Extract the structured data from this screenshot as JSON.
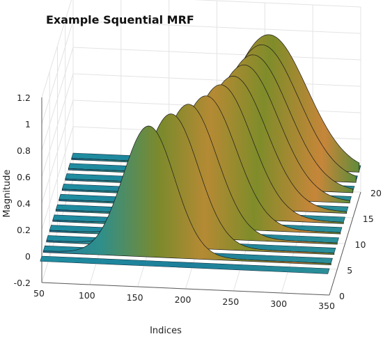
{
  "chart_data": {
    "type": "surface3d",
    "title": "Example Squential MRF",
    "xlabel": "Indices",
    "ylabel": "",
    "zlabel": "Magnitude",
    "x_ticks": [
      "50",
      "100",
      "150",
      "200",
      "250",
      "300",
      "350"
    ],
    "y_ticks": [
      "0",
      "5",
      "10",
      "15",
      "20"
    ],
    "z_ticks": [
      "-0.2",
      "0",
      "0.2",
      "0.4",
      "0.6",
      "0.8",
      "1",
      "1.2"
    ],
    "xlim": [
      50,
      350
    ],
    "ylim": [
      0,
      20
    ],
    "zlim": [
      -0.2,
      1.2
    ],
    "grid": true,
    "colormap": "parula-like (blue, teal, olive, orange)",
    "series": [
      {
        "y": 1,
        "peak_index": 160,
        "peak_height": 0.98,
        "width": 38
      },
      {
        "y": 3,
        "peak_index": 180,
        "peak_height": 1.0,
        "width": 40
      },
      {
        "y": 5,
        "peak_index": 195,
        "peak_height": 1.0,
        "width": 42
      },
      {
        "y": 7,
        "peak_index": 210,
        "peak_height": 0.99,
        "width": 44
      },
      {
        "y": 9,
        "peak_index": 222,
        "peak_height": 1.0,
        "width": 46
      },
      {
        "y": 11,
        "peak_index": 232,
        "peak_height": 0.99,
        "width": 48
      },
      {
        "y": 13,
        "peak_index": 240,
        "peak_height": 1.0,
        "width": 50
      },
      {
        "y": 15,
        "peak_index": 246,
        "peak_height": 1.0,
        "width": 52
      },
      {
        "y": 17,
        "peak_index": 252,
        "peak_height": 1.0,
        "width": 54
      },
      {
        "y": 19,
        "peak_index": 256,
        "peak_height": 1.0,
        "width": 56
      }
    ],
    "flat_rows_y": [
      0,
      2,
      4,
      6,
      8,
      10,
      12,
      14,
      16,
      18,
      20
    ],
    "colors": {
      "low": "#1f77b4",
      "mid": "#2a9d8f",
      "olive": "#7f8c2a",
      "high": "#c8862a"
    }
  }
}
